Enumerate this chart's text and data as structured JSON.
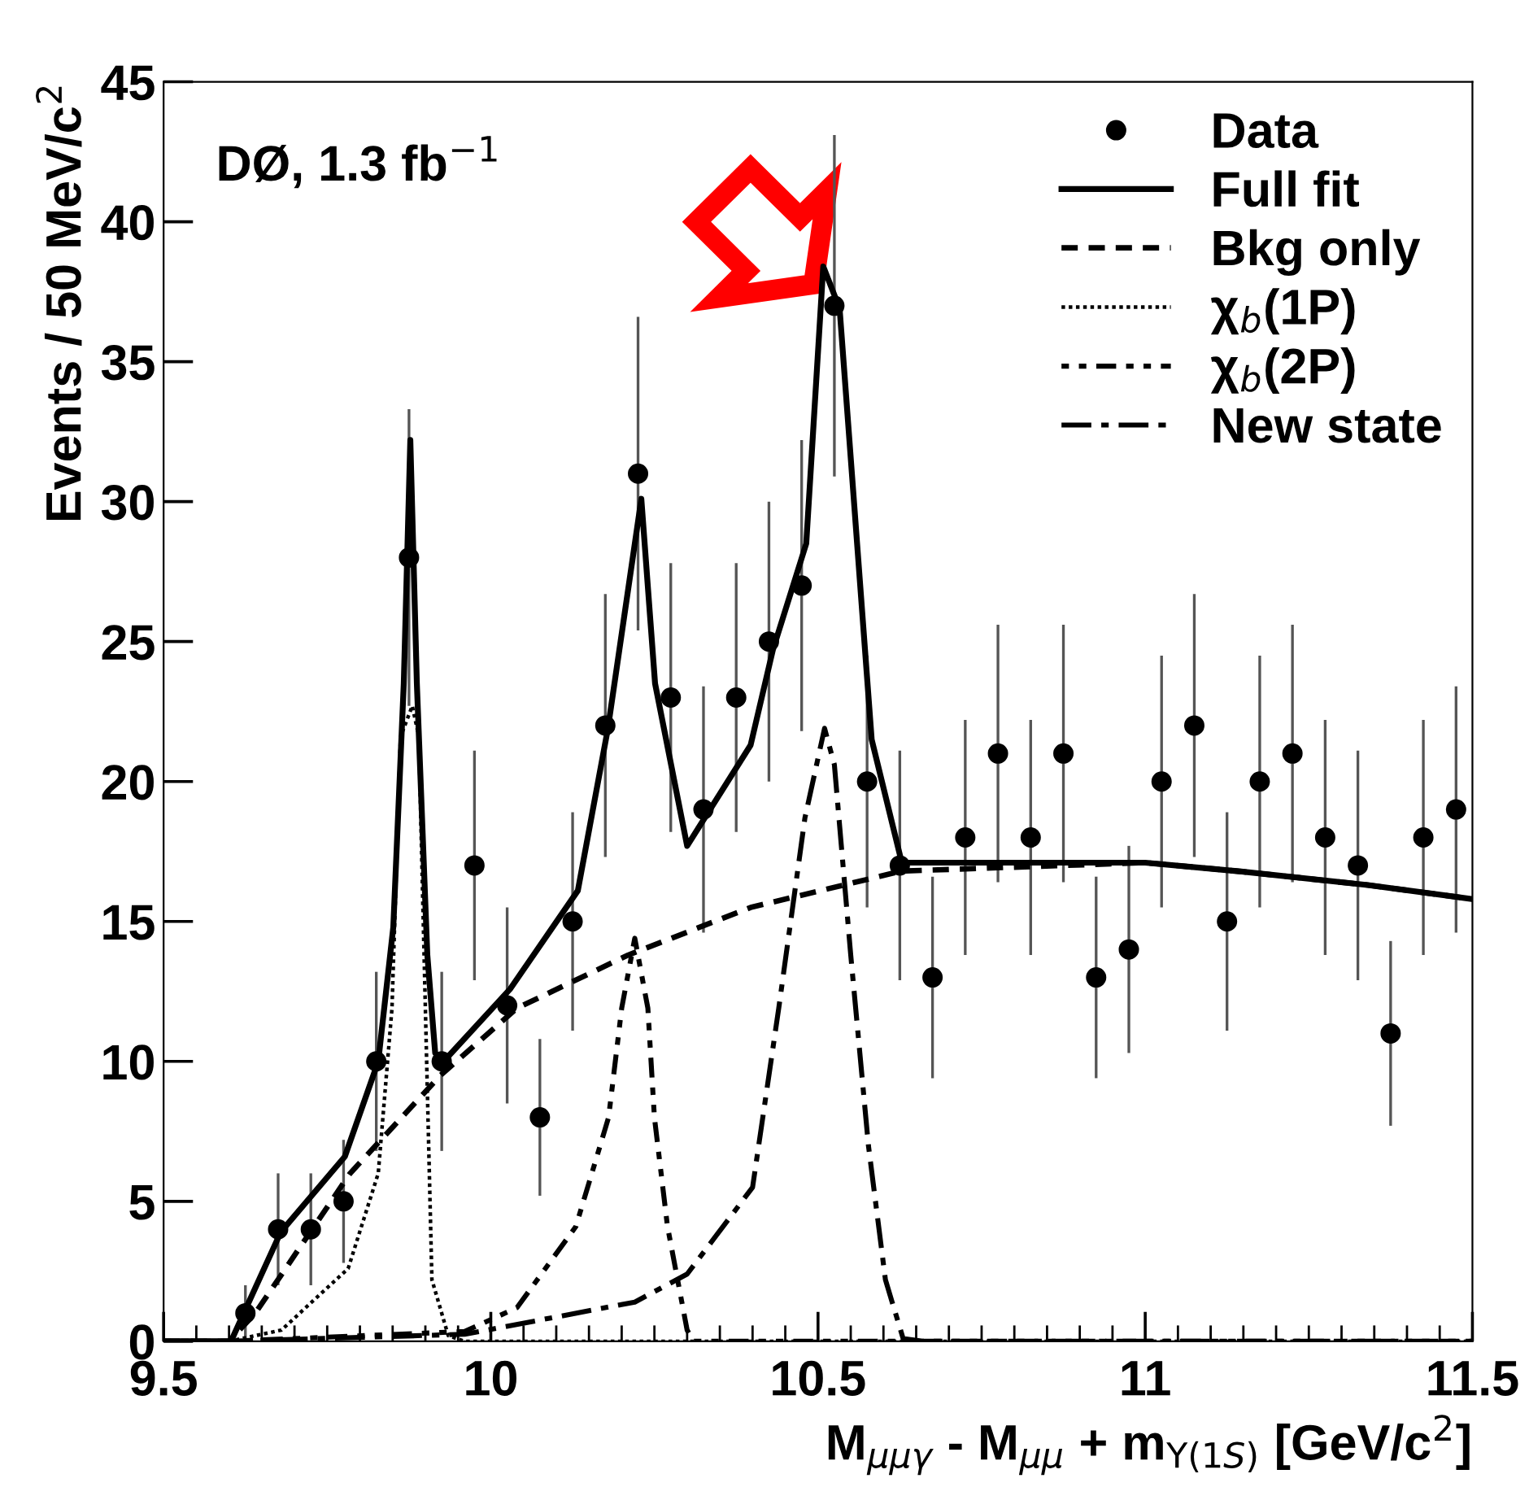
{
  "chart_data": {
    "type": "scatter",
    "xlabel": "M$_{μμγ}$ - M$_{μμ}$ + m$_{Υ(1S)}$ [GeV/c$^{2}$]",
    "ylabel": "Events / 50 MeV/c$^{2}$",
    "annotations": [
      "DØ, 1.3 fb$^{−1}$"
    ],
    "xlim": [
      9.5,
      11.5
    ],
    "ylim": [
      0,
      45
    ],
    "xticks": [
      9.5,
      10,
      10.5,
      11,
      11.5
    ],
    "yticks": [
      0,
      5,
      10,
      15,
      20,
      25,
      30,
      35,
      40,
      45
    ],
    "grid": false,
    "legend": "top right",
    "series": [
      {
        "name": "Data",
        "color": "#000000",
        "marker": "circle",
        "x": [
          9.625,
          9.675,
          9.725,
          9.775,
          9.825,
          9.875,
          9.925,
          9.975,
          10.025,
          10.075,
          10.125,
          10.175,
          10.225,
          10.275,
          10.325,
          10.375,
          10.425,
          10.475,
          10.525,
          10.575,
          10.625,
          10.675,
          10.725,
          10.775,
          10.825,
          10.875,
          10.925,
          10.975,
          11.025,
          11.075,
          11.125,
          11.175,
          11.225,
          11.275,
          11.325,
          11.375,
          11.425,
          11.475
        ],
        "values": [
          1,
          4,
          4,
          5,
          10,
          28,
          10,
          17,
          12,
          8,
          15,
          22,
          31,
          23,
          19,
          23,
          25,
          27,
          37,
          20,
          17,
          13,
          18,
          21,
          18,
          21,
          13,
          14,
          20,
          22,
          15,
          20,
          21,
          18,
          17,
          11,
          18,
          19
        ],
        "errors": [
          1.0,
          2.0,
          2.0,
          2.2,
          3.2,
          5.3,
          3.2,
          4.1,
          3.5,
          2.8,
          3.9,
          4.7,
          5.6,
          4.8,
          4.4,
          4.8,
          5.0,
          5.2,
          6.1,
          4.5,
          4.1,
          3.6,
          4.2,
          4.6,
          4.2,
          4.6,
          3.6,
          3.7,
          4.5,
          4.7,
          3.9,
          4.5,
          4.6,
          4.2,
          4.1,
          3.3,
          4.2,
          4.4
        ]
      },
      {
        "name": "Full fit",
        "type": "line",
        "color": "#000000",
        "line_style": "solid",
        "x": [
          9.5,
          9.603,
          9.679,
          9.777,
          9.828,
          9.851,
          9.867,
          9.877,
          9.887,
          9.903,
          9.915,
          9.928,
          10.03,
          10.133,
          10.179,
          10.23,
          10.251,
          10.3,
          10.397,
          10.431,
          10.482,
          10.508,
          10.533,
          10.582,
          10.628,
          11.0,
          11.14,
          11.34,
          11.5
        ],
        "values": [
          0,
          0,
          3.9,
          6.6,
          10,
          14.8,
          23.5,
          32.2,
          23.5,
          13.8,
          10.3,
          10,
          12.6,
          16.1,
          21.9,
          30.1,
          23.5,
          17.7,
          21.3,
          24.7,
          28.5,
          38.4,
          36.9,
          21.5,
          17.1,
          17.1,
          16.8,
          16.3,
          15.8
        ]
      },
      {
        "name": "Bkg only",
        "type": "line",
        "color": "#000000",
        "line_style": "dashed",
        "x": [
          9.5,
          9.6,
          9.64,
          9.785,
          9.923,
          10.04,
          10.21,
          10.397,
          10.628,
          11.0,
          11.14,
          11.34,
          11.5
        ],
        "values": [
          0,
          0,
          1.0,
          6.0,
          9.5,
          11.9,
          13.8,
          15.5,
          16.8,
          17.1,
          16.8,
          16.3,
          15.8
        ]
      },
      {
        "name": "χ$_{b}$(1P)",
        "type": "line",
        "color": "#000000",
        "line_style": "dotted",
        "x": [
          9.5,
          9.6,
          9.68,
          9.782,
          9.828,
          9.849,
          9.862,
          9.88,
          9.89,
          9.9,
          9.91,
          9.935,
          9.96,
          11.5
        ],
        "values": [
          0,
          0,
          0.4,
          2.6,
          6.0,
          11.9,
          21.6,
          22.7,
          21.6,
          11.9,
          2.2,
          0.2,
          0,
          0
        ]
      },
      {
        "name": "χ$_{b}$(2P)",
        "type": "line",
        "color": "#000000",
        "line_style": "dashdotdot",
        "x": [
          9.5,
          9.6,
          9.96,
          10.04,
          10.13,
          10.18,
          10.2,
          10.22,
          10.24,
          10.25,
          10.27,
          10.3,
          10.31,
          11.5
        ],
        "values": [
          0,
          0,
          0.35,
          1.2,
          4.1,
          8.0,
          11.9,
          14.4,
          11.9,
          8.0,
          4.1,
          0.4,
          0,
          0
        ]
      },
      {
        "name": "New state",
        "type": "line",
        "color": "#000000",
        "line_style": "dashdot",
        "x": [
          9.5,
          9.6,
          9.96,
          10.22,
          10.3,
          10.4,
          10.44,
          10.48,
          10.51,
          10.525,
          10.55,
          10.577,
          10.603,
          10.63,
          10.66,
          11.5
        ],
        "values": [
          0,
          0,
          0.25,
          1.4,
          2.4,
          5.5,
          11.9,
          18.7,
          21.9,
          20.6,
          13.8,
          7.0,
          2.2,
          0.1,
          0,
          0
        ]
      }
    ]
  }
}
